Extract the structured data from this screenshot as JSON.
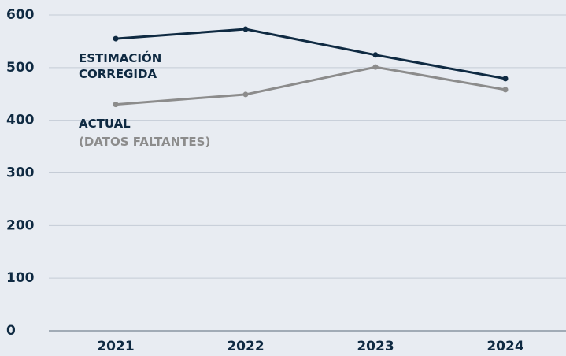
{
  "chart_data": {
    "type": "line",
    "x": [
      "2021",
      "2022",
      "2023",
      "2024"
    ],
    "series": [
      {
        "name": "ESTIMACIÓN CORREGIDA",
        "color": "#0f2a42",
        "values": [
          555,
          573,
          524,
          479
        ]
      },
      {
        "name": "ACTUAL",
        "note": "(DATOS FALTANTES)",
        "color": "#8c8c8c",
        "values": [
          430,
          449,
          501,
          458
        ]
      }
    ],
    "ylim": [
      0,
      600
    ],
    "yticks": [
      0,
      100,
      200,
      300,
      400,
      500,
      600
    ],
    "grid": true
  }
}
